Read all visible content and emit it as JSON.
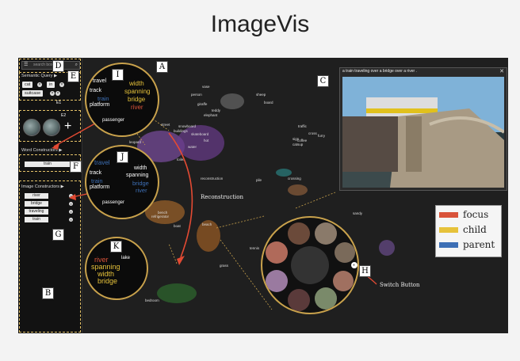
{
  "title": "ImageVis",
  "labels": {
    "A": "A",
    "B": "B",
    "C": "C",
    "D": "D",
    "E": "E",
    "F": "F",
    "G": "G",
    "H": "H",
    "I": "I",
    "J": "J",
    "K": "K",
    "E1": "E1",
    "E2": "E2"
  },
  "left_panel": {
    "search_placeholder": "search box...",
    "semantic_query_label": "Semantic Query ▶",
    "query_terms": [
      "cat",
      "in",
      "suitcase"
    ],
    "word_constructors_label": "Word Constructors ▶",
    "word_input": "train",
    "image_constructors_label": "Image Constructors ▶",
    "image_terms": [
      "river",
      "bridge",
      "traveling",
      "train"
    ]
  },
  "preview": {
    "caption": "a train traveling over a bridge over a river .",
    "close": "✕"
  },
  "lens_I": {
    "words": [
      "travel",
      "track",
      "train",
      "platform",
      "width",
      "spanning",
      "bridge",
      "river",
      "passenger"
    ]
  },
  "lens_J": {
    "words": [
      "travel",
      "track",
      "train",
      "platform",
      "width",
      "spanning",
      "bridge",
      "river",
      "passenger"
    ]
  },
  "lens_K": {
    "words": [
      "river",
      "spanning",
      "width",
      "bridge",
      "lake"
    ]
  },
  "annotations": {
    "reconstruction": "Reconstruction",
    "switch_button": "Switch Button"
  },
  "legend": [
    {
      "name": "focus",
      "color": "#d9533a"
    },
    {
      "name": "child",
      "color": "#e6c23a"
    },
    {
      "name": "parent",
      "color": "#3d6fb5"
    }
  ],
  "scatter_words": [
    "vase",
    "snowboard",
    "skateboard",
    "hot",
    "water",
    "toilet",
    "refrigerator",
    "bench",
    "boat",
    "sandy",
    "beach",
    "traffic",
    "cross",
    "sign",
    "crossing",
    "catsup",
    "furry",
    "pile",
    "reconstruction",
    "leopard",
    "grass",
    "tennis",
    "coffee",
    "bedroom",
    "street",
    "buildings",
    "giraffe",
    "teddy",
    "elephant",
    "person",
    "sheep",
    "board"
  ]
}
